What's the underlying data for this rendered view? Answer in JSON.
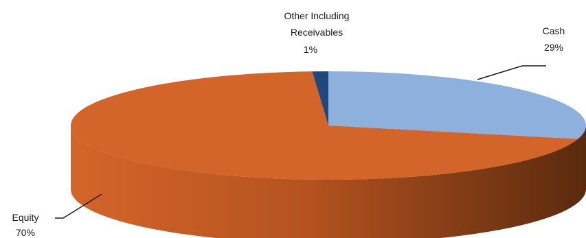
{
  "chart_data": {
    "type": "pie",
    "style": "3d",
    "title": "",
    "slices": [
      {
        "label": "Cash",
        "value_label": "29%",
        "value": 29,
        "color": "#8eb0dc"
      },
      {
        "label": "Other Including Receivables",
        "label_lines": [
          "Other Including",
          "Receivables"
        ],
        "value_label": "1%",
        "value": 1,
        "color": "#1f497d"
      },
      {
        "label": "Equity",
        "value_label": "70%",
        "value": 70,
        "color": "#d4652a"
      }
    ]
  }
}
